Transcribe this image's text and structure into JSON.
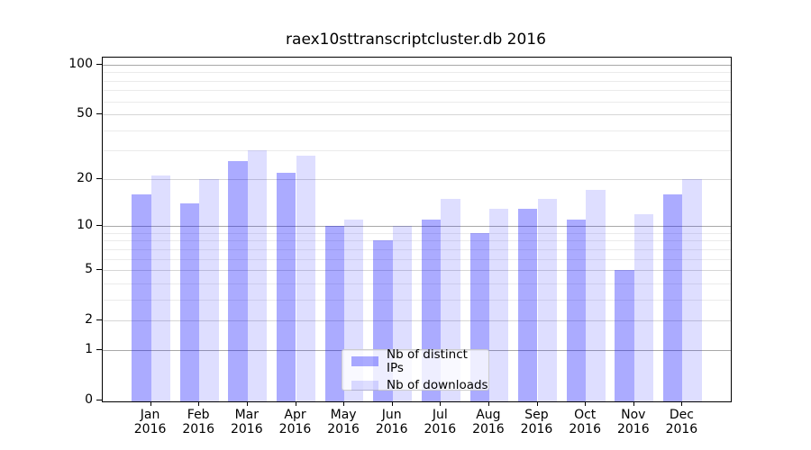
{
  "chart_data": {
    "type": "bar",
    "title": "raex10sttranscriptcluster.db 2016",
    "categories": [
      "Jan",
      "Feb",
      "Mar",
      "Apr",
      "May",
      "Jun",
      "Jul",
      "Aug",
      "Sep",
      "Oct",
      "Nov",
      "Dec"
    ],
    "year": "2016",
    "series": [
      {
        "name": "Nb of distinct IPs",
        "color": "rgba(0,0,255,0.33)",
        "hex_on_white": "#aaaaff",
        "values": [
          16,
          14,
          26,
          22,
          10,
          8,
          11,
          9,
          13,
          11,
          5,
          16
        ]
      },
      {
        "name": "Nb of downloads",
        "color": "rgba(0,0,255,0.13)",
        "hex_on_white": "#ddddff",
        "values": [
          21,
          20,
          30,
          28,
          11,
          10,
          15,
          13,
          15,
          17,
          12,
          20
        ]
      }
    ],
    "xlabel": "",
    "ylabel": "",
    "yscale": "log1p",
    "ylim": [
      0,
      110
    ],
    "yticks": [
      0,
      1,
      2,
      5,
      10,
      20,
      50,
      100
    ],
    "major_gridlines": [
      1,
      10,
      100
    ],
    "minor_gridlines": [
      3,
      4,
      6,
      7,
      8,
      9,
      30,
      40,
      60,
      70,
      80,
      90
    ],
    "grid": "on",
    "legend_position": "lower center"
  }
}
